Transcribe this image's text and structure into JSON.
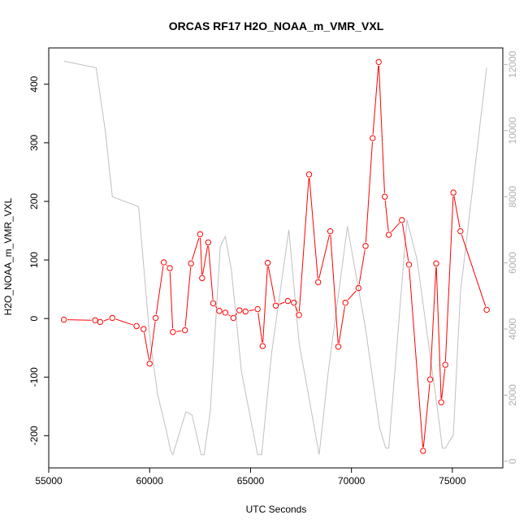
{
  "chart_data": {
    "type": "line",
    "title": "ORCAS RF17 H2O_NOAA_m_VMR_VXL",
    "xlabel": "UTC Seconds",
    "ylabel": "H2O_NOAA_m_VMR_VXL",
    "xlim": [
      55000,
      77500
    ],
    "ylim": [
      -255,
      462
    ],
    "y2lim": [
      -200,
      12500
    ],
    "x_ticks": [
      55000,
      60000,
      65000,
      70000,
      75000
    ],
    "y_ticks": [
      -200,
      -100,
      0,
      100,
      200,
      300,
      400
    ],
    "y2_ticks": [
      0,
      2000,
      4000,
      6000,
      8000,
      10000,
      12000
    ],
    "grid": false,
    "series": [
      {
        "color": "#ff0000",
        "style": "points-and-lines",
        "x": [
          55750,
          57300,
          57550,
          58150,
          59350,
          59700,
          60000,
          60300,
          60700,
          61000,
          61150,
          61750,
          62050,
          62500,
          62600,
          62900,
          63150,
          63450,
          63750,
          64150,
          64450,
          64750,
          65350,
          65600,
          65850,
          66250,
          66850,
          67150,
          67400,
          67900,
          68350,
          68950,
          69350,
          69700,
          70350,
          70700,
          71050,
          71350,
          71650,
          71850,
          72500,
          72850,
          73550,
          73900,
          74200,
          74450,
          74650,
          75050,
          75400,
          76700
        ],
        "y": [
          -2,
          -3,
          -6,
          1,
          -13,
          -18,
          -77,
          1,
          96,
          86,
          -23,
          -20,
          94,
          144,
          69,
          130,
          26,
          13,
          10,
          1,
          14,
          12,
          16,
          -47,
          95,
          22,
          30,
          27,
          6,
          246,
          62,
          149,
          -48,
          27,
          52,
          124,
          308,
          438,
          208,
          143,
          168,
          92,
          -226,
          -104,
          94,
          -143,
          -79,
          215,
          149,
          15
        ]
      },
      {
        "color": "#c0c0c0",
        "style": "line",
        "axis": "right",
        "x": [
          55750,
          57350,
          57800,
          58150,
          59450,
          60000,
          60400,
          60800,
          61050,
          61150,
          61800,
          62100,
          62550,
          62700,
          63000,
          63500,
          63750,
          64050,
          64550,
          65350,
          65550,
          66050,
          66900,
          67400,
          68400,
          68850,
          69800,
          70700,
          71400,
          71700,
          71850,
          72750,
          73250,
          74300,
          74500,
          74650,
          75050,
          75400,
          76700
        ],
        "y": [
          12100,
          11900,
          10000,
          8000,
          7700,
          3800,
          2000,
          1000,
          300,
          200,
          1500,
          1400,
          200,
          200,
          1500,
          6500,
          6800,
          5800,
          2700,
          200,
          200,
          3300,
          7000,
          3600,
          200,
          2700,
          7100,
          4000,
          1000,
          400,
          400,
          7300,
          6100,
          1400,
          400,
          400,
          800,
          5100,
          11900
        ]
      }
    ]
  }
}
